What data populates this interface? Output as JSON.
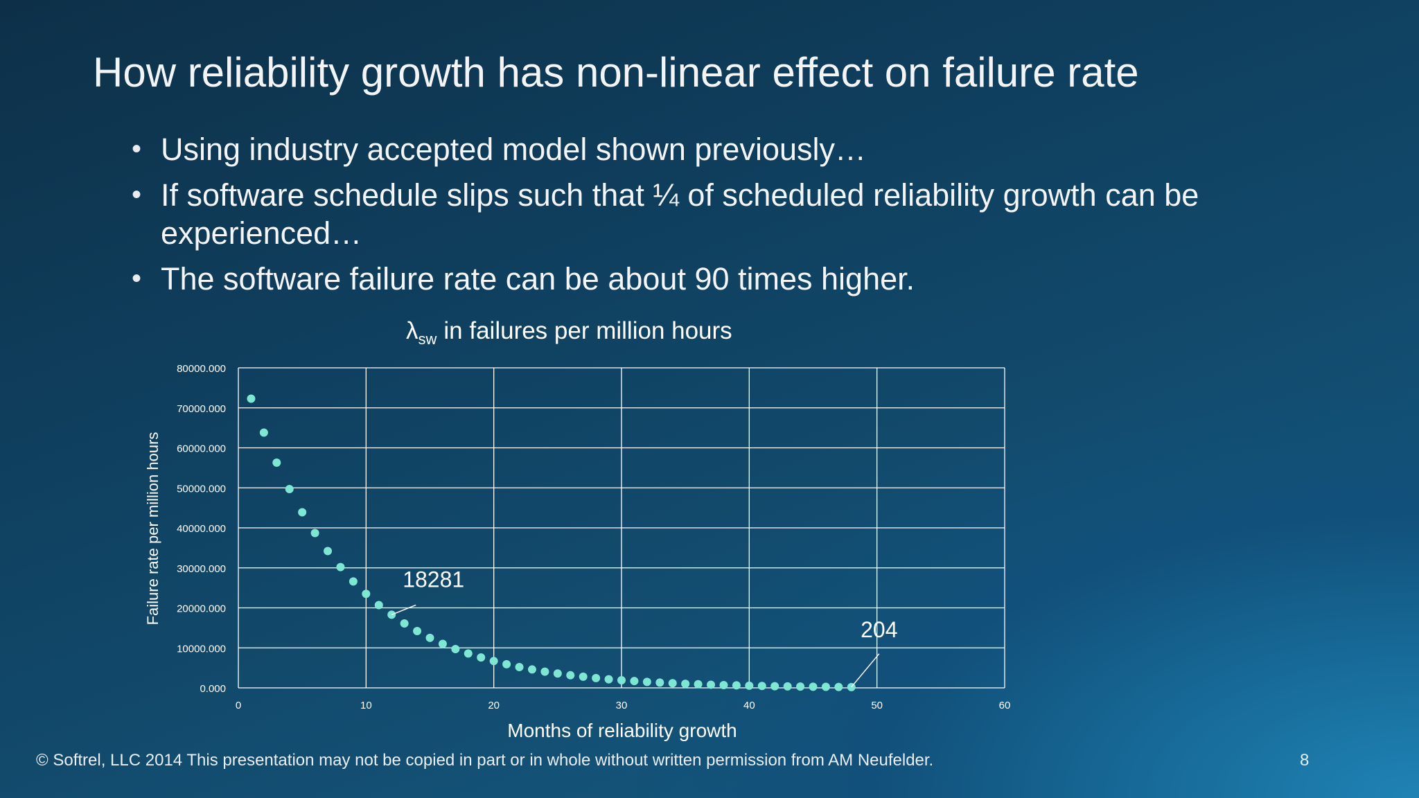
{
  "slide": {
    "title": "How reliability growth has non-linear effect on failure rate",
    "bullets": [
      "Using industry accepted model shown previously…",
      "If software schedule slips such that ¼ of scheduled reliability growth can be experienced…",
      "The software failure rate can be about 90 times higher."
    ],
    "footer": "© Softrel, LLC 2014 This presentation may not be copied in part or in whole without written permission from AM Neufelder.",
    "page_number": "8"
  },
  "chart_data": {
    "type": "scatter",
    "title_symbol": "λ",
    "title_subscript": "sw",
    "title_text": "in failures per million hours",
    "xlabel": "Months of reliability growth",
    "ylabel": "Failure rate per million hours",
    "xlim": [
      0,
      60
    ],
    "ylim": [
      0,
      80000
    ],
    "x_ticks": [
      "0",
      "10",
      "20",
      "30",
      "40",
      "50",
      "60"
    ],
    "y_ticks": [
      "0.000",
      "10000.000",
      "20000.000",
      "30000.000",
      "40000.000",
      "50000.000",
      "60000.000",
      "70000.000",
      "80000.000"
    ],
    "grid": true,
    "marker_color": "#7fe6d4",
    "grid_color": "#ffffff",
    "series": [
      {
        "name": "Failure rate",
        "x": [
          1,
          2,
          3,
          4,
          5,
          6,
          7,
          8,
          9,
          10,
          11,
          12,
          13,
          14,
          15,
          16,
          17,
          18,
          19,
          20,
          21,
          22,
          23,
          24,
          25,
          26,
          27,
          28,
          29,
          30,
          31,
          32,
          33,
          34,
          35,
          36,
          37,
          38,
          39,
          40,
          41,
          42,
          43,
          44,
          45,
          46,
          47,
          48
        ],
        "y": [
          72300,
          63800,
          56300,
          49700,
          43900,
          38700,
          34200,
          30200,
          26600,
          23500,
          20700,
          18281,
          16100,
          14200,
          12500,
          11000,
          9700,
          8600,
          7600,
          6700,
          5900,
          5200,
          4600,
          4050,
          3600,
          3150,
          2800,
          2450,
          2150,
          1900,
          1700,
          1500,
          1320,
          1160,
          1020,
          900,
          790,
          700,
          620,
          540,
          480,
          420,
          370,
          330,
          290,
          255,
          225,
          204
        ]
      }
    ],
    "annotations": [
      {
        "label": "18281",
        "x": 12,
        "y": 18281
      },
      {
        "label": "204",
        "x": 48,
        "y": 204
      }
    ]
  }
}
